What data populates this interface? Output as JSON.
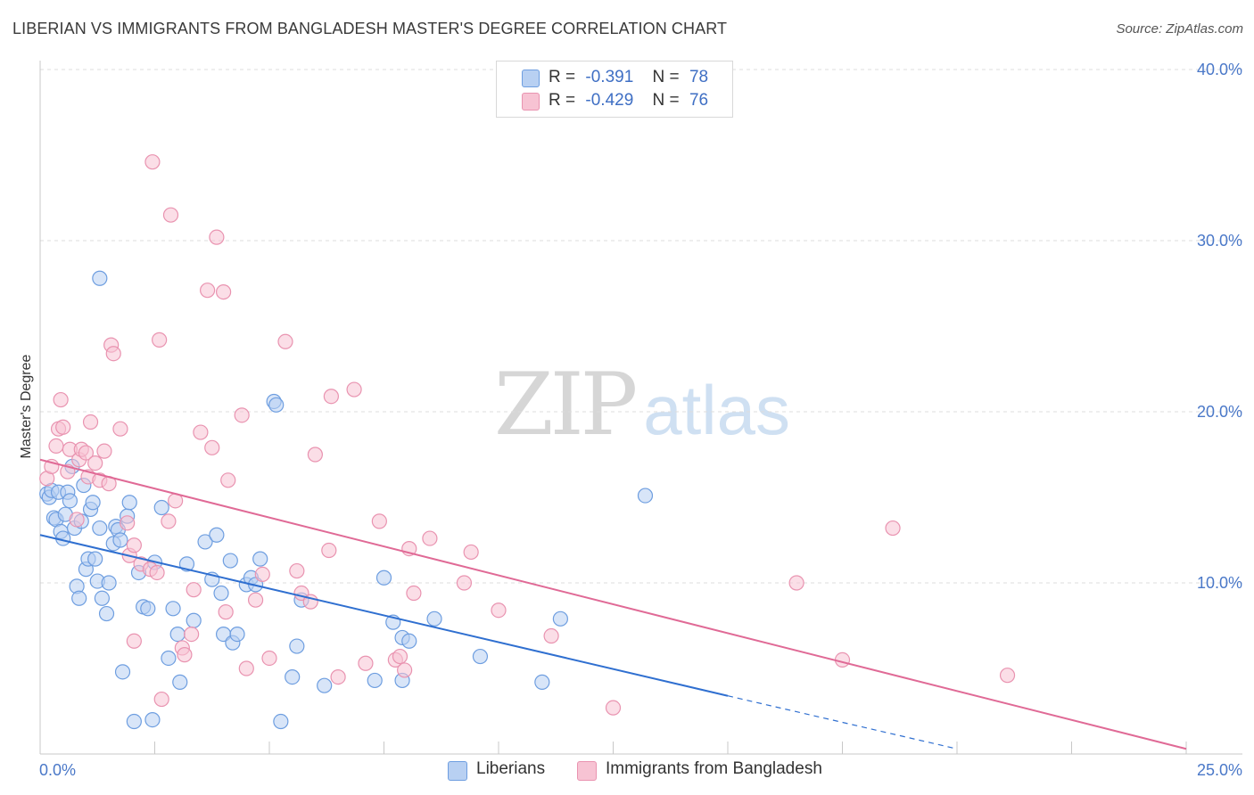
{
  "header": {
    "title": "LIBERIAN VS IMMIGRANTS FROM BANGLADESH MASTER'S DEGREE CORRELATION CHART",
    "source": "Source: ZipAtlas.com"
  },
  "watermark": {
    "zip": "ZIP",
    "atlas": "atlas"
  },
  "colors": {
    "blue_fill": "#b8d0f2",
    "blue_stroke": "#6e9ee0",
    "blue_line": "#2f6fd0",
    "pink_fill": "#f7c3d3",
    "pink_stroke": "#e993b0",
    "pink_line": "#e06a96",
    "grid": "#dcdcdc",
    "tick_label": "#4a78c8"
  },
  "legend": {
    "rows": [
      {
        "r_label": "R =",
        "r_value": "-0.391",
        "n_label": "N =",
        "n_value": "78"
      },
      {
        "r_label": "R =",
        "r_value": "-0.429",
        "n_label": "N =",
        "n_value": "76"
      }
    ]
  },
  "bottom_legend": {
    "items": [
      "Liberians",
      "Immigrants from Bangladesh"
    ]
  },
  "chart_data": {
    "type": "scatter",
    "title": "LIBERIAN VS IMMIGRANTS FROM BANGLADESH MASTER'S DEGREE CORRELATION CHART",
    "xlabel": "",
    "ylabel": "Master's Degree",
    "xlim": [
      0,
      25
    ],
    "ylim": [
      0,
      40
    ],
    "x_tick_labels": [
      "0.0%",
      "25.0%"
    ],
    "y_ticks": [
      10,
      20,
      30,
      40
    ],
    "y_tick_labels": [
      "10.0%",
      "20.0%",
      "30.0%",
      "40.0%"
    ],
    "grid": true,
    "series": [
      {
        "name": "Liberians",
        "r": -0.391,
        "n": 78,
        "trend": {
          "x0": 0,
          "y0": 12.8,
          "x1": 15,
          "y1": 3.4,
          "dash_to_x": 20,
          "dash_to_y": 0.3
        },
        "points": [
          [
            0.15,
            15.2
          ],
          [
            0.2,
            15.0
          ],
          [
            0.25,
            15.4
          ],
          [
            0.3,
            13.8
          ],
          [
            0.35,
            13.7
          ],
          [
            0.4,
            15.3
          ],
          [
            0.45,
            13.0
          ],
          [
            0.5,
            12.6
          ],
          [
            0.55,
            14.0
          ],
          [
            0.6,
            15.3
          ],
          [
            0.65,
            14.8
          ],
          [
            0.7,
            16.8
          ],
          [
            0.75,
            13.2
          ],
          [
            0.8,
            9.8
          ],
          [
            0.85,
            9.1
          ],
          [
            0.9,
            13.6
          ],
          [
            0.95,
            15.7
          ],
          [
            1.0,
            10.8
          ],
          [
            1.05,
            11.4
          ],
          [
            1.1,
            14.3
          ],
          [
            1.15,
            14.7
          ],
          [
            1.2,
            11.4
          ],
          [
            1.25,
            10.1
          ],
          [
            1.3,
            13.2
          ],
          [
            1.35,
            9.1
          ],
          [
            1.45,
            8.2
          ],
          [
            1.5,
            10.0
          ],
          [
            1.6,
            12.3
          ],
          [
            1.65,
            13.3
          ],
          [
            1.7,
            13.1
          ],
          [
            1.75,
            12.5
          ],
          [
            1.8,
            4.8
          ],
          [
            1.9,
            13.9
          ],
          [
            1.95,
            14.7
          ],
          [
            2.05,
            1.9
          ],
          [
            2.15,
            10.6
          ],
          [
            2.25,
            8.6
          ],
          [
            2.35,
            8.5
          ],
          [
            2.45,
            2.0
          ],
          [
            2.5,
            11.2
          ],
          [
            2.65,
            14.4
          ],
          [
            2.8,
            5.6
          ],
          [
            2.9,
            8.5
          ],
          [
            3.0,
            7.0
          ],
          [
            3.05,
            4.2
          ],
          [
            3.2,
            11.1
          ],
          [
            3.35,
            7.8
          ],
          [
            3.6,
            12.4
          ],
          [
            3.75,
            10.2
          ],
          [
            3.85,
            12.8
          ],
          [
            3.95,
            9.4
          ],
          [
            4.0,
            7.0
          ],
          [
            4.15,
            11.3
          ],
          [
            4.2,
            6.5
          ],
          [
            4.3,
            7.0
          ],
          [
            4.5,
            9.9
          ],
          [
            4.6,
            10.3
          ],
          [
            4.7,
            9.9
          ],
          [
            4.8,
            11.4
          ],
          [
            5.1,
            20.6
          ],
          [
            5.15,
            20.4
          ],
          [
            5.25,
            1.9
          ],
          [
            5.5,
            4.5
          ],
          [
            5.6,
            6.3
          ],
          [
            5.7,
            9.0
          ],
          [
            6.2,
            4.0
          ],
          [
            7.3,
            4.3
          ],
          [
            7.5,
            10.3
          ],
          [
            7.7,
            7.7
          ],
          [
            7.9,
            4.3
          ],
          [
            7.9,
            6.8
          ],
          [
            8.05,
            6.6
          ],
          [
            8.6,
            7.9
          ],
          [
            9.6,
            5.7
          ],
          [
            10.95,
            4.2
          ],
          [
            11.35,
            7.9
          ],
          [
            13.2,
            15.1
          ],
          [
            1.3,
            27.8
          ]
        ]
      },
      {
        "name": "Immigrants from Bangladesh",
        "r": -0.429,
        "n": 76,
        "trend": {
          "x0": 0,
          "y0": 17.2,
          "x1": 25,
          "y1": 0.3
        },
        "points": [
          [
            0.15,
            16.1
          ],
          [
            0.25,
            16.8
          ],
          [
            0.35,
            18.0
          ],
          [
            0.4,
            19.0
          ],
          [
            0.45,
            20.7
          ],
          [
            0.5,
            19.1
          ],
          [
            0.6,
            16.5
          ],
          [
            0.65,
            17.8
          ],
          [
            0.8,
            13.7
          ],
          [
            0.85,
            17.2
          ],
          [
            0.9,
            17.8
          ],
          [
            1.0,
            17.6
          ],
          [
            1.05,
            16.2
          ],
          [
            1.1,
            19.4
          ],
          [
            1.2,
            17.0
          ],
          [
            1.3,
            16.0
          ],
          [
            1.4,
            17.7
          ],
          [
            1.5,
            15.8
          ],
          [
            1.55,
            23.9
          ],
          [
            1.6,
            23.4
          ],
          [
            1.75,
            19.0
          ],
          [
            1.9,
            13.5
          ],
          [
            1.95,
            11.6
          ],
          [
            2.05,
            12.2
          ],
          [
            2.05,
            6.6
          ],
          [
            2.2,
            11.1
          ],
          [
            2.4,
            10.8
          ],
          [
            2.45,
            34.6
          ],
          [
            2.55,
            10.6
          ],
          [
            2.65,
            3.2
          ],
          [
            2.6,
            24.2
          ],
          [
            2.8,
            13.6
          ],
          [
            2.85,
            31.5
          ],
          [
            2.95,
            14.8
          ],
          [
            3.1,
            6.2
          ],
          [
            3.15,
            5.8
          ],
          [
            3.3,
            7.0
          ],
          [
            3.35,
            9.6
          ],
          [
            3.5,
            18.8
          ],
          [
            3.65,
            27.1
          ],
          [
            3.75,
            17.9
          ],
          [
            3.85,
            30.2
          ],
          [
            4.0,
            27.0
          ],
          [
            4.05,
            8.3
          ],
          [
            4.1,
            16.0
          ],
          [
            4.4,
            19.8
          ],
          [
            4.5,
            5.0
          ],
          [
            4.7,
            9.0
          ],
          [
            4.85,
            10.5
          ],
          [
            5.0,
            5.6
          ],
          [
            5.35,
            24.1
          ],
          [
            5.6,
            10.7
          ],
          [
            5.7,
            9.4
          ],
          [
            5.9,
            8.9
          ],
          [
            6.0,
            17.5
          ],
          [
            6.3,
            11.9
          ],
          [
            6.35,
            20.9
          ],
          [
            6.5,
            4.5
          ],
          [
            6.85,
            21.3
          ],
          [
            7.1,
            5.3
          ],
          [
            7.4,
            13.6
          ],
          [
            7.75,
            5.5
          ],
          [
            7.85,
            5.7
          ],
          [
            7.95,
            4.9
          ],
          [
            8.05,
            12.0
          ],
          [
            8.15,
            9.4
          ],
          [
            8.5,
            12.6
          ],
          [
            9.25,
            10.0
          ],
          [
            9.4,
            11.8
          ],
          [
            10.0,
            8.4
          ],
          [
            11.15,
            6.9
          ],
          [
            12.5,
            2.7
          ],
          [
            16.5,
            10.0
          ],
          [
            17.5,
            5.5
          ],
          [
            18.6,
            13.2
          ],
          [
            21.1,
            4.6
          ]
        ]
      }
    ]
  }
}
